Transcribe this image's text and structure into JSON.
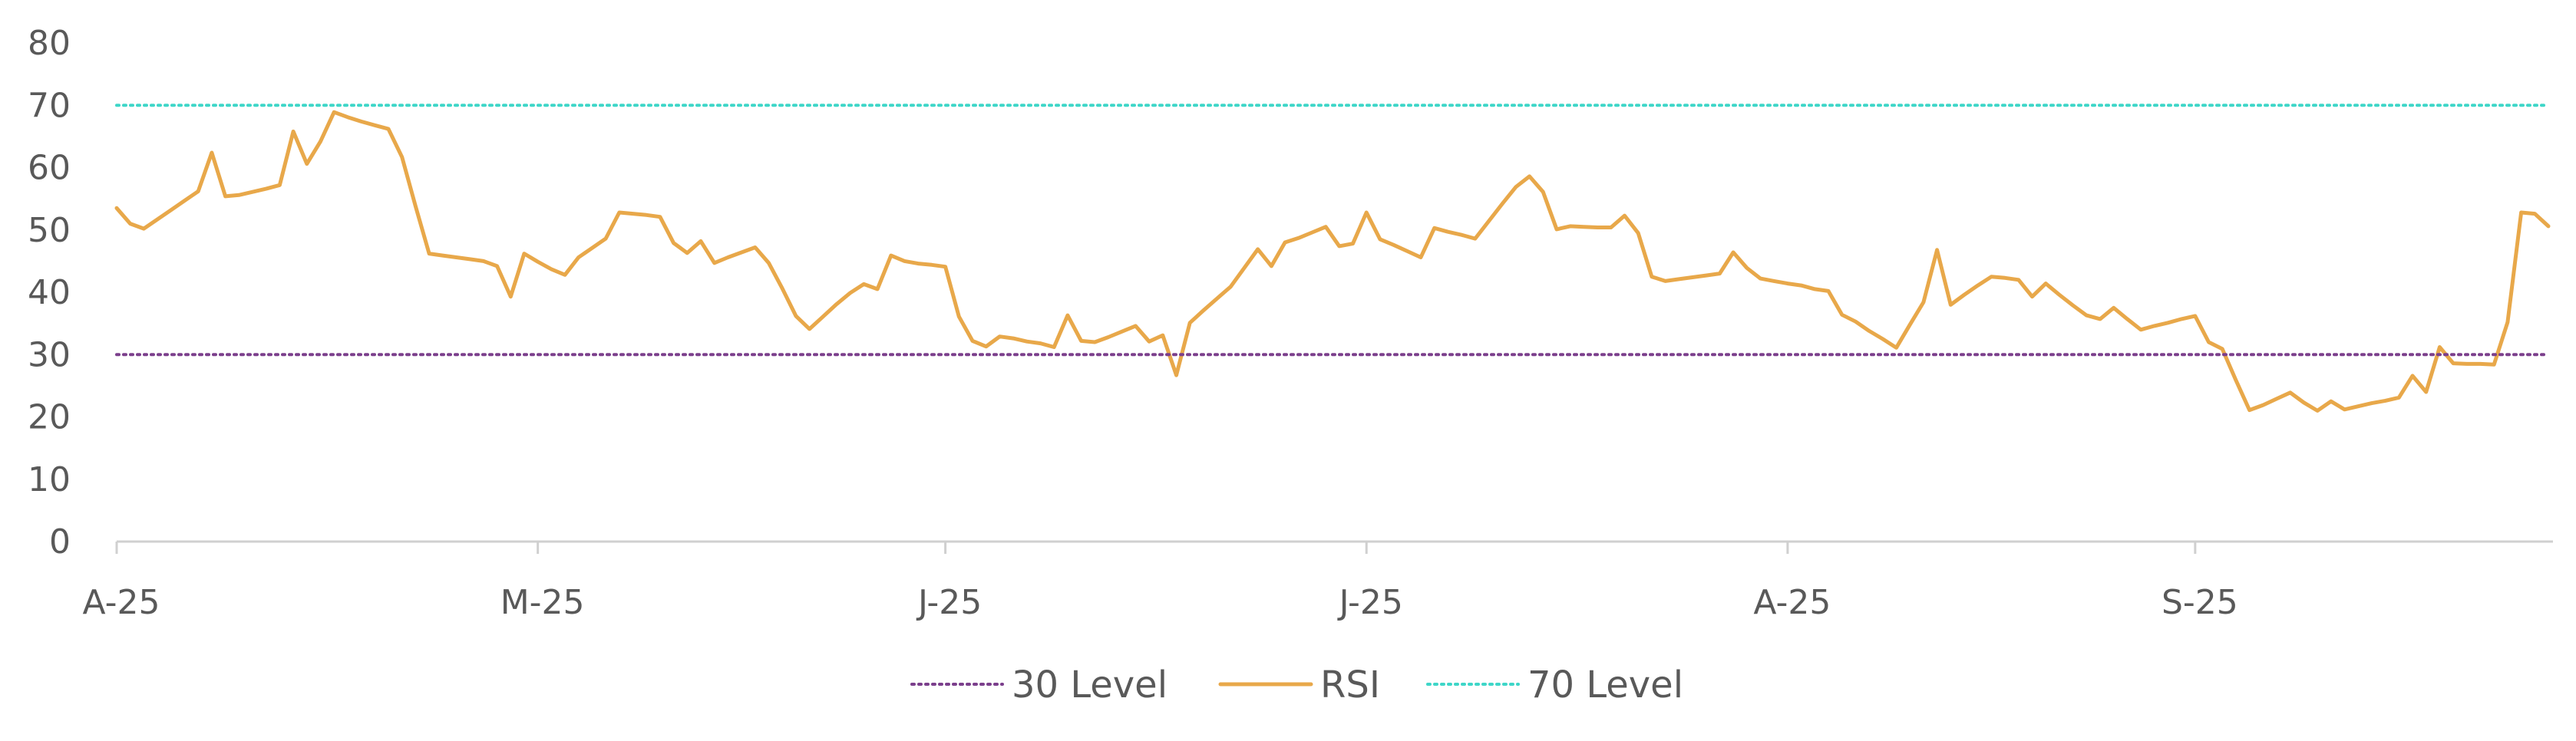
{
  "chart_data": {
    "type": "line",
    "title": "",
    "xlabel": "",
    "ylabel": "",
    "ylim": [
      0,
      80
    ],
    "yticks": [
      0,
      10,
      20,
      30,
      40,
      50,
      60,
      70,
      80
    ],
    "x_tick_labels": [
      "A-25",
      "M-25",
      "J-25",
      "J-25",
      "A-25",
      "S-25"
    ],
    "x_tick_index": [
      0,
      31,
      61,
      92,
      123,
      153
    ],
    "grid": false,
    "legend_position": "bottom",
    "legend": [
      "30 Level",
      "RSI",
      "70 Level"
    ],
    "series": [
      {
        "name": "RSI",
        "color": "#E8A84A",
        "style": "solid",
        "values": [
          53.5,
          51,
          50.2,
          51.7,
          53.2,
          54.7,
          56.2,
          62.4,
          55.4,
          55.6,
          56.1,
          56.6,
          57.2,
          65.8,
          60.6,
          64.2,
          68.9,
          68.1,
          67.4,
          66.8,
          66.2,
          61.7,
          53.8,
          46.2,
          45.9,
          45.6,
          45.3,
          45,
          44.2,
          39.3,
          46.2,
          44.9,
          43.7,
          42.8,
          45.6,
          47.1,
          48.6,
          52.8,
          52.6,
          52.4,
          52.1,
          47.9,
          46.3,
          48.2,
          44.7,
          45.6,
          46.4,
          47.2,
          44.7,
          40.6,
          36.2,
          34.1,
          36.1,
          38.1,
          39.9,
          41.3,
          40.5,
          45.9,
          45,
          44.6,
          44.4,
          44.1,
          36.1,
          32.2,
          31.3,
          32.9,
          32.6,
          32.1,
          31.8,
          31.2,
          36.3,
          32.2,
          32,
          32.8,
          33.7,
          34.6,
          32.1,
          33.1,
          26.7,
          35.1,
          37.1,
          39,
          40.9,
          43.9,
          46.9,
          44.2,
          48,
          48.7,
          49.6,
          50.5,
          47.4,
          47.8,
          52.8,
          48.5,
          47.6,
          46.6,
          45.6,
          50.3,
          49.7,
          49.2,
          48.6,
          51.4,
          54.2,
          56.9,
          58.6,
          56.1,
          50.1,
          50.6,
          50.5,
          50.4,
          50.4,
          52.3,
          49.5,
          42.5,
          41.8,
          42.1,
          42.4,
          42.7,
          43,
          46.4,
          43.9,
          42.2,
          41.8,
          41.4,
          41.1,
          40.5,
          40.2,
          36.4,
          35.3,
          33.8,
          32.5,
          31.1,
          34.8,
          38.4,
          46.8,
          38,
          39.6,
          41.1,
          42.5,
          42.3,
          42,
          39.3,
          41.4,
          39.6,
          37.9,
          36.3,
          35.7,
          37.5,
          35.7,
          34,
          34.6,
          35.1,
          35.7,
          36.2,
          32,
          30.9,
          25.9,
          21.1,
          21.9,
          22.9,
          23.9,
          22.3,
          21,
          22.5,
          21.2,
          21.7,
          22.2,
          22.6,
          23.1,
          26.6,
          24,
          31.2,
          28.6,
          28.5,
          28.5,
          28.4,
          35.2,
          52.8,
          52.6,
          50.6
        ]
      },
      {
        "name": "30 Level",
        "color": "#7B3F8C",
        "style": "dotted",
        "values": [
          30,
          30
        ]
      },
      {
        "name": "70 Level",
        "color": "#3ED6C8",
        "style": "dotted",
        "values": [
          70,
          70
        ]
      }
    ]
  }
}
